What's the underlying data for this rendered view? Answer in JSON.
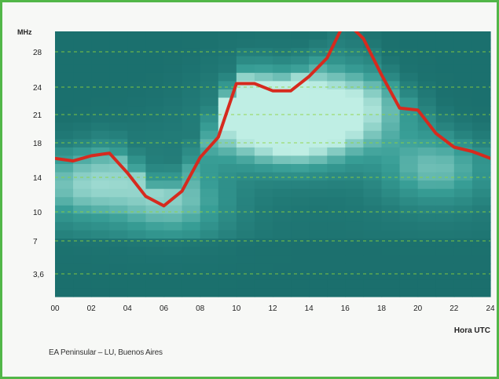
{
  "caption": "EA Peninsular – LU, Buenos Aires",
  "colors": {
    "frame": "#52b748",
    "heat_low": "#1a6e6c",
    "heat_high": "#bfeee4",
    "muf_line": "#d62a1e",
    "grid": "#8fd43a"
  },
  "chart_data": {
    "type": "heatmap",
    "title": "",
    "ylabel": "MHz",
    "xlabel": "Hora UTC",
    "x_tick_labels": [
      "00",
      "02",
      "04",
      "06",
      "08",
      "10",
      "12",
      "14",
      "16",
      "18",
      "20",
      "22",
      "24"
    ],
    "x_range": [
      0,
      24
    ],
    "y_tick_labels": [
      "3,6",
      "7",
      "10",
      "14",
      "18",
      "21",
      "24",
      "28"
    ],
    "y_ticks": [
      3.6,
      7,
      10,
      14,
      18,
      21,
      24,
      28
    ],
    "grid": true,
    "grid_style": "dashed horizontal at each y tick",
    "heatmap": {
      "x_bins": 24,
      "y_bins": 32,
      "description_hidden": true,
      "peaks": [
        {
          "x": 10.5,
          "y": 21,
          "level": 0.9
        },
        {
          "x": 13.5,
          "y": 19,
          "level": 1.0
        },
        {
          "x": 16.5,
          "y": 22,
          "level": 0.85
        },
        {
          "x": 12,
          "y": 25.5,
          "level": 0.55
        },
        {
          "x": 21,
          "y": 15,
          "level": 0.7
        },
        {
          "x": 1.5,
          "y": 13,
          "level": 0.75
        },
        {
          "x": 6.5,
          "y": 11,
          "level": 0.7
        },
        {
          "x": 5.2,
          "y": 17,
          "level": 0.45
        }
      ]
    },
    "series": [
      {
        "type": "line",
        "x": [
          0,
          1,
          2,
          3,
          4,
          5,
          6,
          7,
          8,
          9,
          10,
          11,
          12,
          13,
          14,
          15,
          16,
          17,
          18,
          19,
          20,
          21,
          22,
          23,
          24
        ],
        "y": [
          16.2,
          15.9,
          16.5,
          16.8,
          14.5,
          11.8,
          10.7,
          12.4,
          16.3,
          18.6,
          24.4,
          24.4,
          23.6,
          23.6,
          25.2,
          27.3,
          31.5,
          29.5,
          25.4,
          21.7,
          21.5,
          19,
          17.5,
          17,
          16.2
        ]
      }
    ]
  }
}
